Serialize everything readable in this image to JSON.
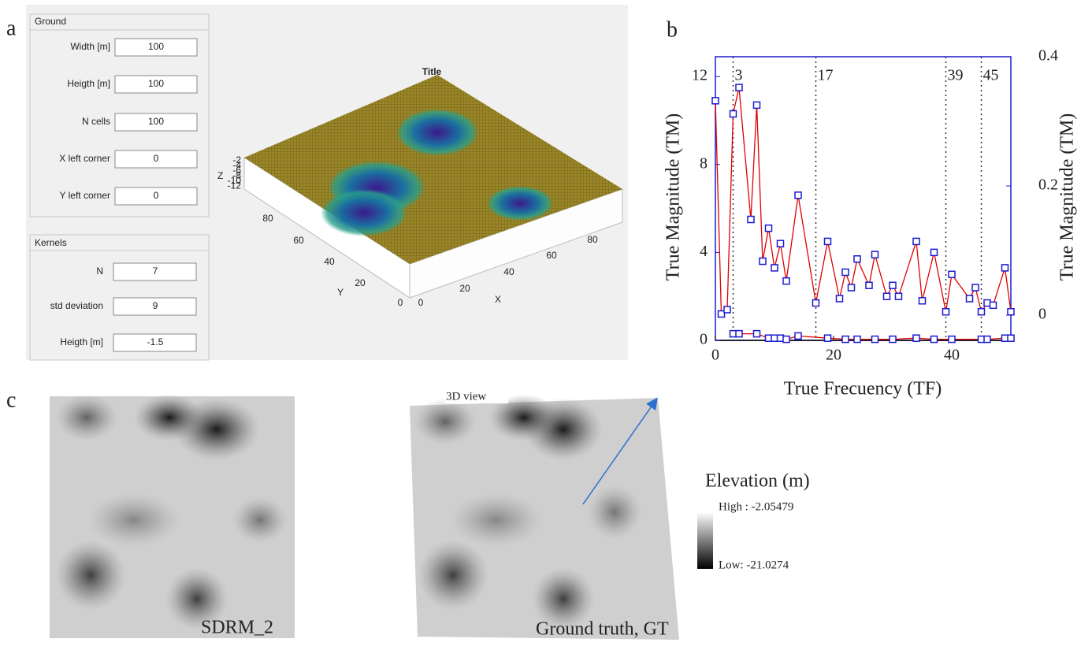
{
  "panel_labels": [
    "a",
    "b",
    "c"
  ],
  "ui": {
    "ground": {
      "title": "Ground",
      "fields": [
        {
          "label": "Width [m]",
          "value": "100"
        },
        {
          "label": "Heigth [m]",
          "value": "100"
        },
        {
          "label": "N cells",
          "value": "100"
        },
        {
          "label": "X left corner",
          "value": "0"
        },
        {
          "label": "Y left corner",
          "value": "0"
        }
      ]
    },
    "kernels": {
      "title": "Kernels",
      "fields": [
        {
          "label": "N",
          "value": "7"
        },
        {
          "label": "std deviation",
          "value": "9"
        },
        {
          "label": "Heigth [m]",
          "value": "-1.5"
        }
      ]
    }
  },
  "plot3d": {
    "title": "Title",
    "xlabel": "X",
    "ylabel": "Y",
    "zlabel": "Z",
    "xticks": [
      0,
      20,
      40,
      60,
      80
    ],
    "yticks": [
      0,
      20,
      40,
      60,
      80
    ],
    "zticks": [
      -2,
      -4,
      -6,
      -8,
      -10,
      -12
    ]
  },
  "chart_data": {
    "type": "line",
    "xlabel": "True Frecuency (TF)",
    "ylabel": "True Magnitude (TM)",
    "y2label": "True Magnitude (TM)",
    "xlim": [
      0,
      50
    ],
    "xticks": [
      0,
      20,
      40
    ],
    "ylim": [
      0,
      12.9
    ],
    "yticks": [
      0,
      4,
      8,
      12
    ],
    "y2lim": [
      -0.039,
      0.4
    ],
    "y2ticks": [
      0,
      0.2,
      0.4
    ],
    "vlines": [
      3,
      17,
      39,
      45
    ],
    "series": [
      {
        "color": "#e00000",
        "marker_color": "#1a1ad0",
        "x": [
          0,
          1,
          2,
          3,
          4,
          6,
          7,
          8,
          9,
          10,
          11,
          12,
          14,
          17,
          19,
          21,
          22,
          23,
          24,
          26,
          27,
          29,
          30,
          31,
          34,
          35,
          37,
          39,
          40,
          43,
          44,
          45,
          46,
          47,
          49,
          50
        ],
        "values": [
          10.9,
          1.2,
          1.4,
          10.3,
          11.5,
          5.5,
          10.7,
          3.6,
          5.1,
          3.3,
          4.4,
          2.7,
          6.6,
          1.7,
          4.5,
          1.9,
          3.1,
          2.4,
          3.7,
          2.5,
          3.9,
          2.0,
          2.5,
          2.0,
          4.5,
          1.8,
          4.0,
          1.3,
          3.0,
          1.9,
          2.4,
          1.3,
          1.7,
          1.6,
          3.3,
          1.3
        ]
      },
      {
        "color": "#e00000",
        "marker_color": "#1a1ad0",
        "x": [
          3,
          4,
          7,
          9,
          10,
          11,
          12,
          14,
          19,
          22,
          24,
          27,
          30,
          34,
          37,
          40,
          45,
          46,
          49,
          50
        ],
        "values": [
          0.3,
          0.3,
          0.3,
          0.1,
          0.1,
          0.1,
          0.05,
          0.2,
          0.1,
          0.05,
          0.05,
          0.05,
          0.05,
          0.1,
          0.05,
          0.05,
          0.05,
          0.05,
          0.1,
          0.1
        ]
      }
    ]
  },
  "images": {
    "left_caption": "SDRM_2",
    "right_caption": "Ground truth, GT",
    "view_label": "3D view",
    "legend": {
      "title": "Elevation (m)",
      "high": "High : -2.05479",
      "low": "Low: -21.0274"
    }
  }
}
